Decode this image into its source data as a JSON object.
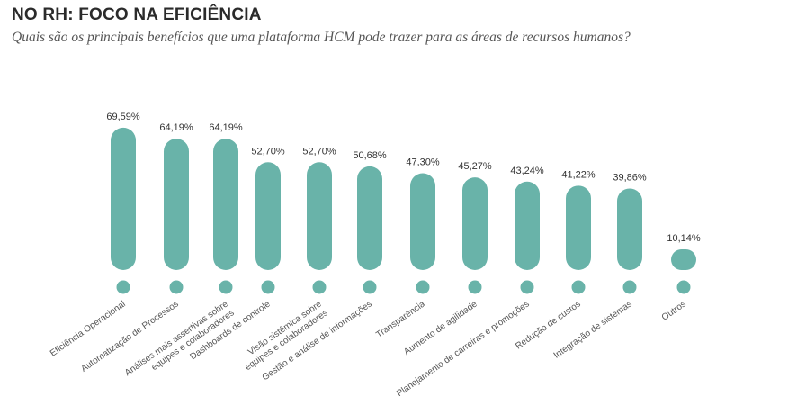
{
  "chart_data": {
    "type": "bar",
    "title": "NO RH: FOCO NA EFICIÊNCIA",
    "subtitle": "Quais são os principais benefícios que uma plataforma HCM pode trazer para as áreas de recursos humanos?",
    "categories": [
      [
        "Eficiência Operacional"
      ],
      [
        "Automatização de  Processos"
      ],
      [
        "Análises mais assertivas sobre",
        "equipes e colaboradores"
      ],
      [
        "Dashboards de controle"
      ],
      [
        "Visão sistêmica sobre",
        "equipes e colaboradores"
      ],
      [
        "Gestão e análise de informações"
      ],
      [
        "Transparência"
      ],
      [
        "Aumento de agilidade"
      ],
      [
        "Planejamento de carreiras e promoções"
      ],
      [
        "Redução de custos"
      ],
      [
        "Integração de sistemas"
      ],
      [
        "Outros"
      ]
    ],
    "values": [
      69.59,
      64.19,
      64.19,
      52.7,
      52.7,
      50.68,
      47.3,
      45.27,
      43.24,
      41.22,
      39.86,
      10.14
    ],
    "value_labels": [
      "69,59%",
      "64,19%",
      "64,19%",
      "52,70%",
      "52,70%",
      "50,68%",
      "47,30%",
      "45,27%",
      "43,24%",
      "41,22%",
      "39,86%",
      "10,14%"
    ],
    "xlabel": "",
    "ylabel": "",
    "ylim": [
      0,
      70
    ],
    "grid": false,
    "bar_color": "#69b3a9"
  }
}
